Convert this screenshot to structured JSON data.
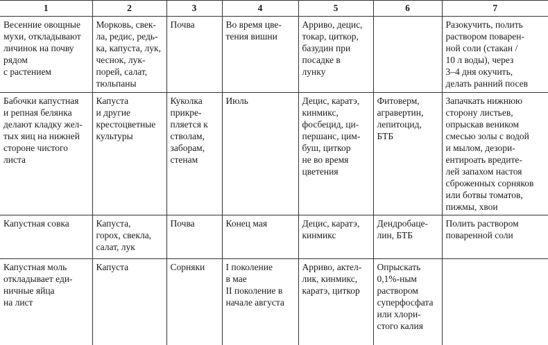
{
  "table": {
    "headers": [
      "1",
      "2",
      "3",
      "4",
      "5",
      "6",
      "7"
    ],
    "rows": [
      [
        "Весенние овощные\nмухи, откладывают\nличинок на почву\nрядом\nс растением",
        "Морковь, свек-\nла, редис, редь-\nка, капуста, лук,\nчеснок, лук-\nпорей, салат,\nтюльпаны",
        "Почва",
        "Во время цве-\nтения вишни",
        "Арриво, децис,\nтокар, циткор,\nбазудин при\nпосадке в\nлунку",
        "",
        "Разокучить, полить\nраствором поварен-\nной соли (стакан /\n10 л воды), через\n3–4 дня окучить,\nделать ранний посев"
      ],
      [
        "Бабочки капустная\nи репная белянка\nделают кладку жел-\nтых яиц на нижней\nстороне чистого\nлиста",
        "Капуста\nи другие\nкрестоцветные\nкультуры",
        "Куколка\nприкре-\nпляется к\nстволам,\nзаборам,\nстенам",
        "Июль",
        "Децис, каратэ,\nкинмикс,\nфосбецид, ци-\nпершанс, цим-\nбуш, циткор\nне во время\nцветения",
        "Фитоверм,\nагравертин,\nлепитоцид,\nБТБ",
        "Запачкать нижнюю\nсторону листьев,\nопрыскав веником\nсмесью золы с водой\nи мылом, дезори-\nентироать вредите-\nлей запахом настоя\nсброженных сорняков\nили ботвы томатов,\nпижмы, хвои"
      ],
      [
        "Капустная совка",
        "Капуста,\nгорох, свекла,\nсалат, лук",
        "Почва",
        "Конец мая",
        "Децис, каратэ,\nкинмикс",
        "Дендробаце-\nлин, БТБ",
        "Полить раствором\nповаренной соли"
      ],
      [
        "Капустная моль\nоткладывает еди-\nничные яйца\nна лист",
        "Капуста",
        "Сорняки",
        "I поколение\nв мае\nII поколение в\nначале августа",
        "Арриво, актел-\nлик, кинмикс,\nкаратэ, циткор",
        "Опрыскать\n0,1%-ным\nраствором\nсуперфосфата\nили хлори-\nстого калия",
        ""
      ]
    ]
  }
}
